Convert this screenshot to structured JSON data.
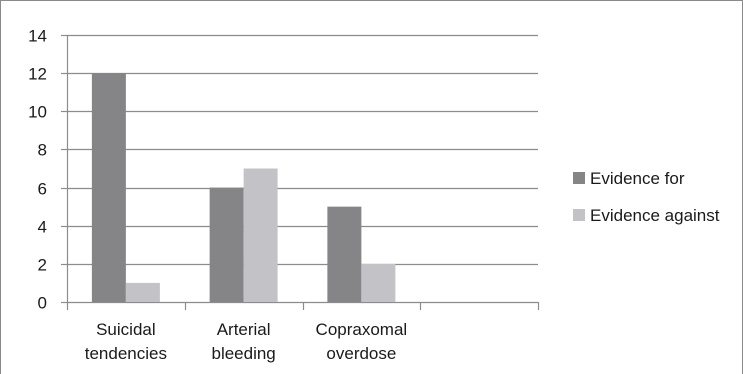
{
  "chart_data": {
    "type": "bar",
    "categories": [
      [
        "Suicidal",
        "tendencies"
      ],
      [
        "Arterial",
        "bleeding"
      ],
      [
        "Copraxomal",
        "overdose"
      ],
      [
        "",
        ""
      ]
    ],
    "series": [
      {
        "name": "Evidence for",
        "values": [
          12,
          6,
          5,
          0
        ],
        "color": "#858587"
      },
      {
        "name": "Evidence against",
        "values": [
          1,
          7,
          2,
          0
        ],
        "color": "#c3c3c7"
      }
    ],
    "yticks": [
      0,
      2,
      4,
      6,
      8,
      10,
      12,
      14
    ],
    "ylim": [
      0,
      14
    ],
    "title": "",
    "xlabel": "",
    "ylabel": "",
    "grid": true,
    "legend_position": "right"
  }
}
